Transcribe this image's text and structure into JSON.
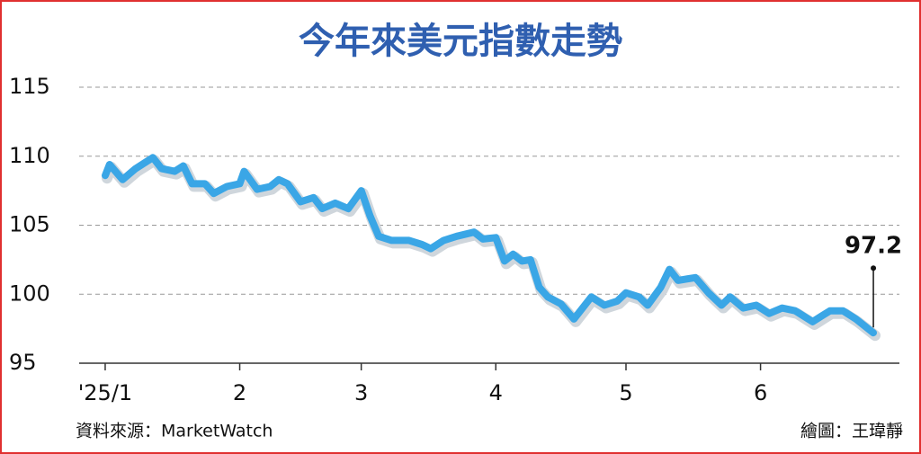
{
  "chart_data": {
    "type": "line",
    "title": "今年來美元指數走勢",
    "source": "資料來源：MarketWatch",
    "credit": "繪圖：王瑋靜",
    "annotation": "97.2",
    "x": [
      1,
      2,
      5,
      8,
      10,
      12,
      14,
      17,
      19,
      21,
      24,
      26,
      29,
      32,
      33,
      36,
      39,
      41,
      43,
      46,
      49,
      51,
      54,
      57,
      60,
      62,
      64,
      67,
      71,
      74,
      76,
      79,
      82,
      86,
      88,
      91,
      93,
      95,
      97,
      99,
      101,
      103,
      106,
      109,
      113,
      116,
      119,
      121,
      124,
      126,
      129,
      131,
      133,
      137,
      140,
      143,
      145,
      148,
      151,
      154,
      157,
      160,
      164,
      166,
      168,
      171,
      174,
      176,
      178
    ],
    "series": [
      {
        "name": "美元指數",
        "color": "#3aa6e6",
        "values": [
          108.6,
          109.4,
          108.3,
          109.1,
          109.5,
          109.9,
          109.1,
          108.9,
          109.3,
          108.0,
          108.0,
          107.3,
          107.8,
          108.0,
          108.9,
          107.6,
          107.8,
          108.3,
          108.0,
          106.7,
          107.0,
          106.2,
          106.6,
          106.2,
          107.5,
          105.7,
          104.2,
          103.9,
          103.9,
          103.6,
          103.3,
          103.9,
          104.2,
          104.5,
          104.0,
          104.1,
          102.4,
          102.9,
          102.4,
          102.5,
          100.5,
          99.8,
          99.3,
          98.2,
          99.8,
          99.2,
          99.5,
          100.1,
          99.8,
          99.2,
          100.5,
          101.8,
          101.0,
          101.2,
          100.1,
          99.2,
          99.8,
          99.0,
          99.2,
          98.6,
          99.0,
          98.8,
          98.0,
          98.4,
          98.8,
          98.8,
          98.2,
          97.7,
          97.2
        ]
      }
    ],
    "xlim": [
      -5,
      184
    ],
    "xticks": [
      {
        "value": 1,
        "label": "'25/1"
      },
      {
        "value": 32,
        "label": "2"
      },
      {
        "value": 60,
        "label": "3"
      },
      {
        "value": 91,
        "label": "4"
      },
      {
        "value": 121,
        "label": "5"
      },
      {
        "value": 152,
        "label": "6"
      }
    ],
    "ylim": [
      95,
      115
    ],
    "yticks": [
      95,
      100,
      105,
      110,
      115
    ],
    "grid": true
  }
}
